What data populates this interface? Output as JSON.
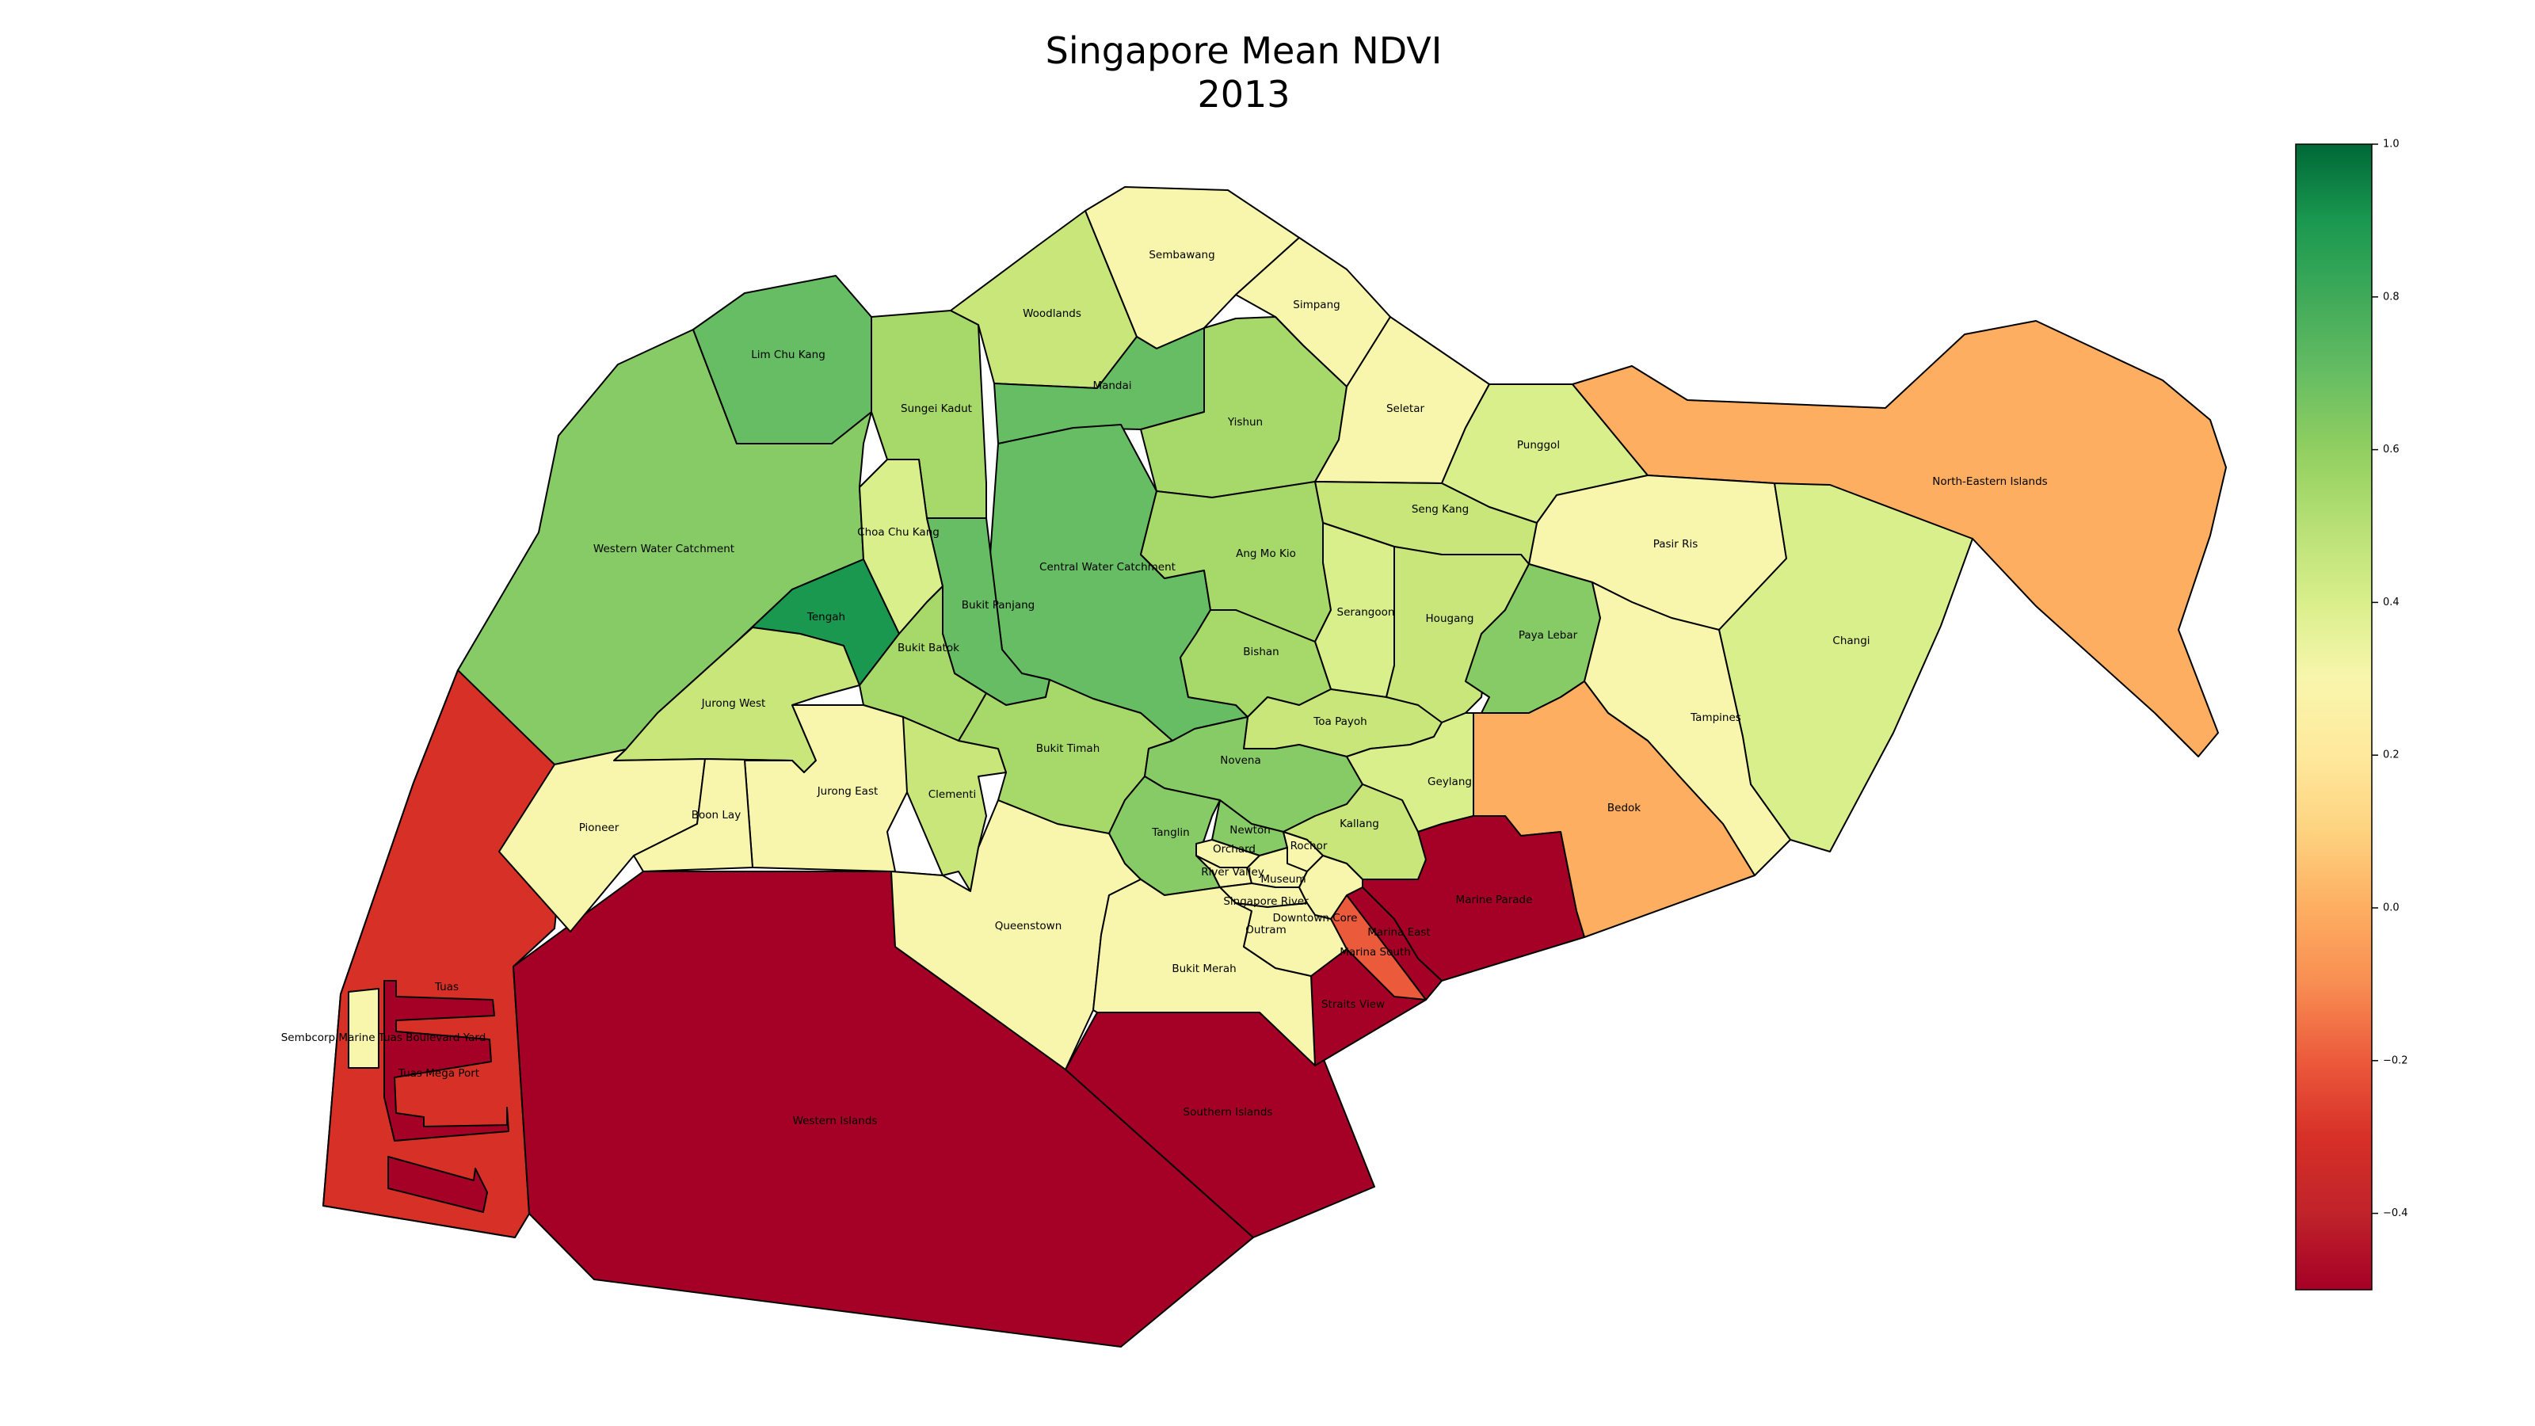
{
  "title": {
    "line1": "Singapore Mean NDVI",
    "line2": "2013"
  },
  "colors": {
    "n040": "#a50026",
    "n030": "#d73027",
    "n020": "#ec5a3c",
    "n010": "#f46d43",
    "n000": "#fdae61",
    "p010": "#fee08b",
    "p020": "#f8f6ac",
    "p030": "#d9ef8b",
    "p040": "#c8e67a",
    "p050": "#a6d96a",
    "p060": "#86cb66",
    "p070": "#66bd63",
    "p080": "#2f9e4f",
    "p090": "#1a9850",
    "p100": "#006837"
  },
  "colorbar": {
    "min": -0.5,
    "max": 1.0,
    "ticks": [
      "1.0",
      "0.8",
      "0.6",
      "0.4",
      "0.2",
      "0.0",
      "−0.2",
      "−0.4"
    ],
    "tick_values": [
      1.0,
      0.8,
      0.6,
      0.4,
      0.2,
      0.0,
      -0.2,
      -0.4
    ],
    "stops": [
      {
        "v": -0.5,
        "c": "#a50026"
      },
      {
        "v": -0.4,
        "c": "#c0232a"
      },
      {
        "v": -0.3,
        "c": "#d73027"
      },
      {
        "v": -0.2,
        "c": "#ec5a3c"
      },
      {
        "v": -0.1,
        "c": "#f88d52"
      },
      {
        "v": 0.0,
        "c": "#fdae61"
      },
      {
        "v": 0.1,
        "c": "#fdd380"
      },
      {
        "v": 0.2,
        "c": "#fee99c"
      },
      {
        "v": 0.3,
        "c": "#f8f6ac"
      },
      {
        "v": 0.4,
        "c": "#d9ef8b"
      },
      {
        "v": 0.5,
        "c": "#b7e075"
      },
      {
        "v": 0.6,
        "c": "#91cf60"
      },
      {
        "v": 0.7,
        "c": "#66bd63"
      },
      {
        "v": 0.8,
        "c": "#3faa59"
      },
      {
        "v": 0.9,
        "c": "#1a9850"
      },
      {
        "v": 1.0,
        "c": "#006837"
      }
    ]
  },
  "labels": {
    "sembawang": "Sembawang",
    "simpang": "Simpang",
    "woodlands": "Woodlands",
    "mandai": "Mandai",
    "lim_chu_kang": "Lim Chu Kang",
    "sungei_kadut": "Sungei Kadut",
    "yishun": "Yishun",
    "seletar": "Seletar",
    "punggol": "Punggol",
    "north_eastern_islands": "North-Eastern Islands",
    "seng_kang": "Seng Kang",
    "pasir_ris": "Pasir Ris",
    "western_water_catchment": "Western Water Catchment",
    "choa_chu_kang": "Choa Chu Kang",
    "central_water_catchment": "Central Water Catchment",
    "ang_mo_kio": "Ang Mo Kio",
    "tengah": "Tengah",
    "bukit_panjang": "Bukit Panjang",
    "serangoon": "Serangoon",
    "hougang": "Hougang",
    "paya_lebar": "Paya Lebar",
    "changi": "Changi",
    "bukit_batok": "Bukit Batok",
    "bishan": "Bishan",
    "jurong_west": "Jurong West",
    "toa_payoh": "Toa Payoh",
    "tampines": "Tampines",
    "bukit_timah": "Bukit Timah",
    "novena": "Novena",
    "geylang": "Geylang",
    "jurong_east": "Jurong East",
    "clementi": "Clementi",
    "boon_lay": "Boon Lay",
    "pioneer": "Pioneer",
    "bedok": "Bedok",
    "kallang": "Kallang",
    "tanglin": "Tanglin",
    "newton": "Newton",
    "rochor": "Rochor",
    "orchard": "Orchard",
    "river_valley": "River Valley",
    "museum": "Museum",
    "singapore_river": "Singapore River",
    "marine_parade": "Marine Parade",
    "downtown_core": "Downtown Core",
    "outram": "Outram",
    "marina_east": "Marina East",
    "queenstown": "Queenstown",
    "marina_south": "Marina South",
    "bukit_merah": "Bukit Merah",
    "tuas": "Tuas",
    "straits_view": "Straits View",
    "sembcorp": "Sembcorp Marine Tuas Boulevard Yard",
    "tuas_mega_port": "Tuas Mega Port",
    "southern_islands": "Southern Islands",
    "western_islands": "Western Islands"
  }
}
